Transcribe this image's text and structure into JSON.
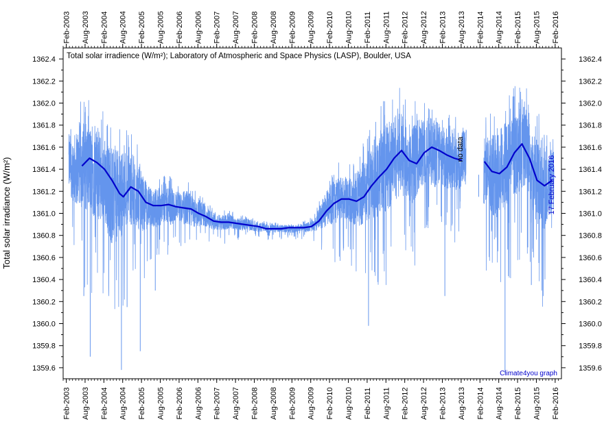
{
  "chart_data": {
    "type": "line",
    "title": "Total solar irradience (W/m²); Laboratory of Atmospheric and Space Physics (LASP), Boulder, USA",
    "ylabel": "Total solar irradiance (W/m²)",
    "xlabel": "",
    "ylim": [
      1359.5,
      1362.5
    ],
    "xlim": [
      2003.0,
      2016.25
    ],
    "y_ticks": [
      1359.6,
      1359.8,
      1360.0,
      1360.2,
      1360.4,
      1360.6,
      1360.8,
      1361.0,
      1361.2,
      1361.4,
      1361.6,
      1361.8,
      1362.0,
      1362.2,
      1362.4
    ],
    "y_tick_labels": [
      "1359.6",
      "1359.8",
      "1360.0",
      "1360.2",
      "1360.4",
      "1360.6",
      "1360.8",
      "1361.0",
      "1361.2",
      "1361.4",
      "1361.6",
      "1361.8",
      "1362.0",
      "1362.2",
      "1362.4"
    ],
    "x_ticks": [
      2003.083,
      2003.583,
      2004.083,
      2004.583,
      2005.083,
      2005.583,
      2006.083,
      2006.583,
      2007.083,
      2007.583,
      2008.083,
      2008.583,
      2009.083,
      2009.583,
      2010.083,
      2010.583,
      2011.083,
      2011.583,
      2012.083,
      2012.583,
      2013.083,
      2013.583,
      2014.083,
      2014.583,
      2015.083,
      2015.583,
      2016.083
    ],
    "x_tick_labels": [
      "Feb-2003",
      "Aug-2003",
      "Feb-2004",
      "Aug-2004",
      "Feb-2005",
      "Aug-2005",
      "Feb-2006",
      "Aug-2006",
      "Feb-2007",
      "Aug-2007",
      "Feb-2008",
      "Aug-2008",
      "Feb-2009",
      "Aug-2009",
      "Feb-2010",
      "Aug-2010",
      "Feb-2011",
      "Aug-2011",
      "Feb-2012",
      "Aug-2012",
      "Feb-2013",
      "Aug-2013",
      "Feb-2014",
      "Aug-2014",
      "Feb-2015",
      "Aug-2015",
      "Feb-2016"
    ],
    "grid": false,
    "series": [
      {
        "style": "thin light blue line (daily values)",
        "color": "#6495ed",
        "x": [
          2003.15,
          2003.3,
          2003.5,
          2003.7,
          2003.9,
          2004.1,
          2004.3,
          2004.5,
          2004.7,
          2004.9,
          2005.1,
          2005.3,
          2005.5,
          2005.7,
          2005.9,
          2006.1,
          2006.3,
          2006.5,
          2006.7,
          2006.9,
          2007.1,
          2007.3,
          2007.5,
          2007.7,
          2007.9,
          2008.1,
          2008.3,
          2008.5,
          2008.7,
          2008.9,
          2009.1,
          2009.3,
          2009.5,
          2009.7,
          2009.9,
          2010.1,
          2010.3,
          2010.5,
          2010.7,
          2010.9,
          2011.1,
          2011.3,
          2011.5,
          2011.7,
          2011.9,
          2012.1,
          2012.3,
          2012.5,
          2012.7,
          2012.9,
          2013.1,
          2013.3,
          2013.5,
          2013.7,
          2014.2,
          2014.4,
          2014.6,
          2014.8,
          2015.0,
          2015.2,
          2015.4,
          2015.6,
          2015.8,
          2016.0
        ],
        "mean": [
          1361.45,
          1361.4,
          1361.45,
          1361.4,
          1361.35,
          1361.3,
          1361.15,
          1361.15,
          1361.25,
          1361.2,
          1361.1,
          1361.05,
          1361.05,
          1361.1,
          1361.05,
          1361.05,
          1361.05,
          1361.0,
          1361.0,
          1360.95,
          1360.92,
          1360.92,
          1360.92,
          1360.9,
          1360.9,
          1360.88,
          1360.87,
          1360.86,
          1360.86,
          1360.86,
          1360.86,
          1360.87,
          1360.87,
          1360.9,
          1361.0,
          1361.08,
          1361.12,
          1361.13,
          1361.12,
          1361.15,
          1361.25,
          1361.32,
          1361.4,
          1361.45,
          1361.55,
          1361.5,
          1361.45,
          1361.55,
          1361.58,
          1361.55,
          1361.5,
          1361.48,
          1361.47,
          1361.5,
          1361.4,
          1361.35,
          1361.35,
          1361.45,
          1361.55,
          1361.62,
          1361.5,
          1361.3,
          1361.25,
          1361.3
        ],
        "spread": [
          0.3,
          0.35,
          0.45,
          0.45,
          0.45,
          0.45,
          0.5,
          0.45,
          0.4,
          0.35,
          0.3,
          0.2,
          0.2,
          0.2,
          0.2,
          0.15,
          0.18,
          0.15,
          0.12,
          0.1,
          0.08,
          0.08,
          0.07,
          0.06,
          0.06,
          0.05,
          0.05,
          0.04,
          0.04,
          0.04,
          0.04,
          0.04,
          0.05,
          0.07,
          0.15,
          0.2,
          0.25,
          0.2,
          0.25,
          0.3,
          0.35,
          0.4,
          0.45,
          0.45,
          0.45,
          0.4,
          0.4,
          0.35,
          0.35,
          0.35,
          0.3,
          0.3,
          0.3,
          0.3,
          0.35,
          0.4,
          0.45,
          0.45,
          0.45,
          0.45,
          0.4,
          0.45,
          0.45,
          0.3
        ],
        "dips": [
          [
            2003.55,
            1360.25
          ],
          [
            2003.72,
            1359.7
          ],
          [
            2004.55,
            1359.58
          ],
          [
            2004.7,
            1360.15
          ],
          [
            2005.05,
            1359.75
          ],
          [
            2005.45,
            1360.3
          ],
          [
            2011.12,
            1359.98
          ],
          [
            2013.15,
            1360.25
          ],
          [
            2014.75,
            1359.55
          ],
          [
            2015.45,
            1360.35
          ],
          [
            2015.65,
            1360.55
          ]
        ]
      },
      {
        "style": "thick dark blue line (running mean)",
        "color": "#0000cc",
        "x": [
          2003.5,
          2003.7,
          2003.9,
          2004.1,
          2004.3,
          2004.5,
          2004.6,
          2004.8,
          2005.0,
          2005.2,
          2005.4,
          2005.6,
          2005.8,
          2006.0,
          2006.2,
          2006.4,
          2006.6,
          2006.8,
          2007.0,
          2007.2,
          2007.4,
          2007.6,
          2007.8,
          2008.0,
          2008.2,
          2008.4,
          2008.6,
          2008.8,
          2009.0,
          2009.2,
          2009.4,
          2009.6,
          2009.8,
          2010.0,
          2010.2,
          2010.4,
          2010.6,
          2010.8,
          2011.0,
          2011.2,
          2011.4,
          2011.6,
          2011.8,
          2012.0,
          2012.2,
          2012.4,
          2012.6,
          2012.8,
          2013.0,
          2013.2,
          2013.4,
          2013.6,
          2014.2,
          2014.4,
          2014.6,
          2014.8,
          2015.0,
          2015.2,
          2015.4,
          2015.6,
          2015.8,
          2016.0
        ],
        "y": [
          1361.43,
          1361.5,
          1361.46,
          1361.4,
          1361.3,
          1361.18,
          1361.15,
          1361.24,
          1361.2,
          1361.1,
          1361.07,
          1361.07,
          1361.08,
          1361.06,
          1361.05,
          1361.04,
          1361.0,
          1360.97,
          1360.93,
          1360.92,
          1360.92,
          1360.91,
          1360.9,
          1360.89,
          1360.88,
          1360.86,
          1360.86,
          1360.86,
          1360.87,
          1360.87,
          1360.87,
          1360.88,
          1360.93,
          1361.02,
          1361.09,
          1361.13,
          1361.13,
          1361.11,
          1361.15,
          1361.25,
          1361.33,
          1361.4,
          1361.5,
          1361.57,
          1361.48,
          1361.45,
          1361.55,
          1361.6,
          1361.57,
          1361.53,
          1361.5,
          1361.48,
          1361.47,
          1361.38,
          1361.36,
          1361.42,
          1361.55,
          1361.63,
          1361.5,
          1361.3,
          1361.25,
          1361.3
        ]
      }
    ],
    "annotations": {
      "gap_label": "no data",
      "date_label": "17 February 2016",
      "credit": "Climate4you graph"
    }
  }
}
